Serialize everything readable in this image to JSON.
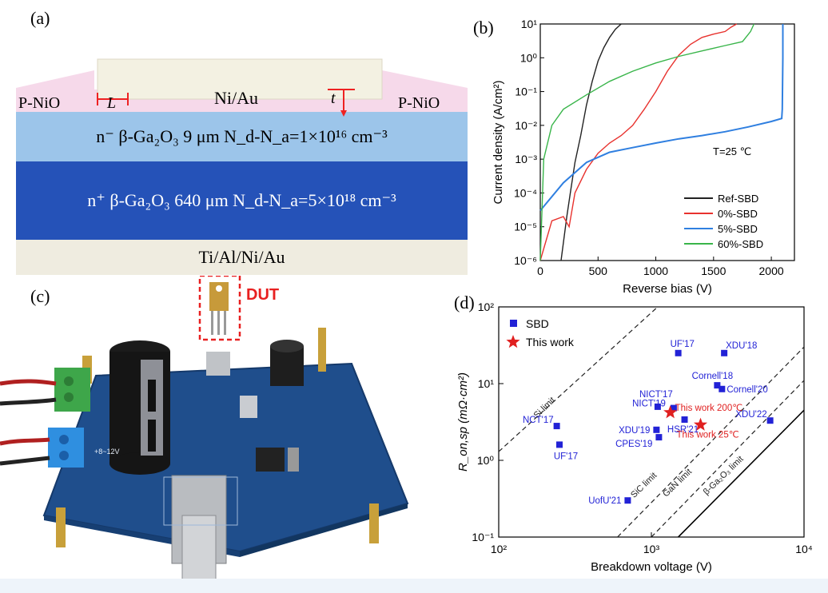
{
  "panels": {
    "a": {
      "label": "(a)",
      "layers": {
        "ni_au": "Ni/Au",
        "p_nio_left": "P-NiO",
        "p_nio_right": "P-NiO",
        "dim_L": "L",
        "dim_t": "t",
        "n_minus": "n⁻ β-Ga₂O₃ 9 μm  N_d-N_a=1×10¹⁶ cm⁻³",
        "n_plus": "n⁺ β-Ga₂O₃ 640 μm N_d-N_a=5×10¹⁸ cm⁻³",
        "ti_al": "Ti/Al/Ni/Au"
      },
      "colors": {
        "cap": "#f3f1e2",
        "nio": "#f6d9ea",
        "n_minus": "#9cc5ea",
        "n_plus": "#2552b8",
        "substrate": "#efece0"
      }
    },
    "b": {
      "label": "(b)",
      "annotation": "T=25 ℃",
      "legend_position": "bottom-right"
    },
    "c": {
      "label": "(c)",
      "dut_label": "DUT",
      "board_label": "+8~12V"
    },
    "d": {
      "label": "(d)",
      "legend": {
        "sbd": "SBD",
        "this_work": "This work"
      },
      "limit_labels": {
        "si": "Si limit",
        "sic": "SiC limit",
        "gan": "GaN limit",
        "ga2o3": "β-Ga₂O₃ limit"
      }
    }
  },
  "chart_data": [
    {
      "type": "line",
      "xlabel": "Reverse bias (V)",
      "ylabel": "Current density (A/cm²)",
      "xlim": [
        0,
        2200
      ],
      "ylim_log10": [
        -6,
        1
      ],
      "y_scale": "log",
      "x_ticks": [
        "0",
        "500",
        "1000",
        "1500",
        "2000"
      ],
      "y_ticks": [
        "10⁻⁶",
        "10⁻⁵",
        "10⁻⁴",
        "10⁻³",
        "10⁻²",
        "10⁻¹",
        "10⁰",
        "10¹"
      ],
      "series": [
        {
          "name": "Ref-SBD",
          "color": "#222222",
          "x": [
            180,
            230,
            260,
            300,
            350,
            400,
            450,
            500,
            550,
            600,
            650,
            700
          ],
          "y": [
            1e-06,
            2e-05,
            0.0001,
            0.0008,
            0.005,
            0.04,
            0.2,
            0.8,
            2,
            4,
            7,
            10
          ]
        },
        {
          "name": "0%-SBD",
          "color": "#e8322e",
          "x": [
            0,
            100,
            200,
            250,
            300,
            400,
            500,
            600,
            700,
            800,
            900,
            1000,
            1100,
            1200,
            1300,
            1400,
            1500,
            1600,
            1650,
            1700
          ],
          "y": [
            1e-06,
            1.5e-05,
            2e-05,
            1e-05,
            0.0001,
            0.0005,
            0.0015,
            0.003,
            0.005,
            0.01,
            0.03,
            0.1,
            0.4,
            1.2,
            2.5,
            4,
            5,
            6,
            8,
            10
          ]
        },
        {
          "name": "5%-SBD",
          "color": "#2f7fe0",
          "x": [
            0,
            200,
            400,
            600,
            800,
            1000,
            1200,
            1400,
            1600,
            1800,
            2000,
            2090,
            2095,
            2100,
            2100
          ],
          "y": [
            3e-05,
            0.0002,
            0.0008,
            0.0016,
            0.0022,
            0.003,
            0.004,
            0.005,
            0.0065,
            0.009,
            0.013,
            0.016,
            0.03,
            1,
            10
          ]
        },
        {
          "name": "60%-SBD",
          "color": "#39b54a",
          "x": [
            0,
            30,
            100,
            200,
            400,
            600,
            800,
            1000,
            1200,
            1400,
            1600,
            1750,
            1820,
            1850
          ],
          "y": [
            1e-06,
            0.001,
            0.01,
            0.03,
            0.08,
            0.2,
            0.4,
            0.7,
            1.1,
            1.6,
            2.3,
            3,
            6,
            10
          ]
        }
      ]
    },
    {
      "type": "scatter",
      "xlabel": "Breakdown voltage (V)",
      "ylabel": "R_on,sp (mΩ·cm²)",
      "x_scale": "log",
      "y_scale": "log",
      "xlim_log10": [
        2,
        4
      ],
      "ylim_log10": [
        -1,
        2
      ],
      "x_ticks": [
        "10²",
        "10³",
        "10⁴"
      ],
      "y_ticks": [
        "10⁻¹",
        "10⁰",
        "10¹",
        "10²"
      ],
      "series": [
        {
          "name": "SBD",
          "color": "#2222d6",
          "points": [
            {
              "label": "UF'17",
              "x": 1500,
              "y": 25
            },
            {
              "label": "XDU'18",
              "x": 3000,
              "y": 25
            },
            {
              "label": "Cornell'18",
              "x": 2700,
              "y": 9.5
            },
            {
              "label": "Cornell'20",
              "x": 2900,
              "y": 8.5
            },
            {
              "label": "NICT'17",
              "x": 1100,
              "y": 5
            },
            {
              "label": "NICT'19",
              "x": 1400,
              "y": 4.8
            },
            {
              "label": "NCT'17",
              "x": 240,
              "y": 2.8
            },
            {
              "label": "UF'17",
              "x": 250,
              "y": 1.6
            },
            {
              "label": "XDU'19",
              "x": 1080,
              "y": 2.5
            },
            {
              "label": "CPES'19",
              "x": 1120,
              "y": 2.0
            },
            {
              "label": "HSR'21",
              "x": 1650,
              "y": 3.4
            },
            {
              "label": "XDU'22",
              "x": 6000,
              "y": 3.3
            },
            {
              "label": "UofU'21",
              "x": 700,
              "y": 0.3
            }
          ]
        },
        {
          "name": "This work",
          "color": "#e02020",
          "points": [
            {
              "label": "This work 200℃",
              "x": 1330,
              "y": 4.2
            },
            {
              "label": "This work 25℃",
              "x": 2100,
              "y": 2.9
            }
          ]
        }
      ]
    }
  ]
}
